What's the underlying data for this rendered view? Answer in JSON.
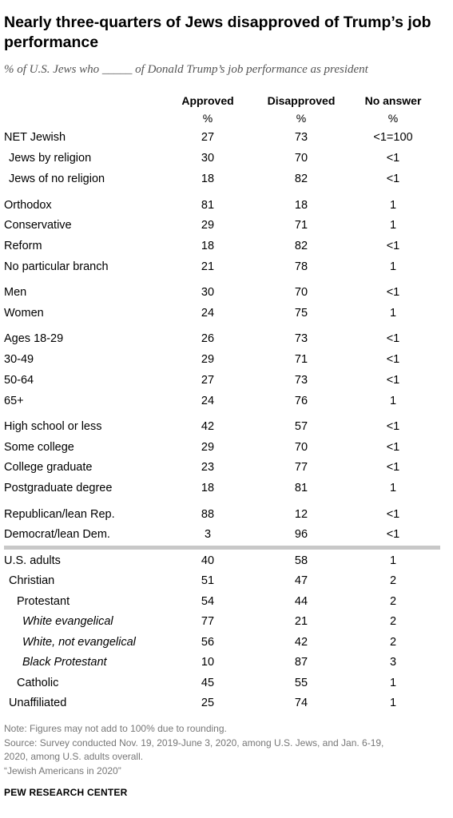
{
  "title": "Nearly three-quarters of Jews disapproved of Trump’s job performance",
  "subtitle": "% of U.S. Jews who _____ of Donald Trump’s job performance as president",
  "chart_data": {
    "type": "table",
    "columns": [
      "Approved",
      "Disapproved",
      "No answer"
    ],
    "units": [
      "%",
      "%",
      "%"
    ],
    "rows": [
      {
        "label": "NET Jewish",
        "values": [
          "27",
          "73",
          "<1=100"
        ]
      },
      {
        "label": "Jews by religion",
        "values": [
          "30",
          "70",
          "<1"
        ]
      },
      {
        "label": "Jews of no religion",
        "values": [
          "18",
          "82",
          "<1"
        ]
      },
      {
        "label": "Orthodox",
        "values": [
          "81",
          "18",
          "1"
        ]
      },
      {
        "label": "Conservative",
        "values": [
          "29",
          "71",
          "1"
        ]
      },
      {
        "label": "Reform",
        "values": [
          "18",
          "82",
          "<1"
        ]
      },
      {
        "label": "No particular branch",
        "values": [
          "21",
          "78",
          "1"
        ]
      },
      {
        "label": "Men",
        "values": [
          "30",
          "70",
          "<1"
        ]
      },
      {
        "label": "Women",
        "values": [
          "24",
          "75",
          "1"
        ]
      },
      {
        "label": "Ages 18-29",
        "values": [
          "26",
          "73",
          "<1"
        ]
      },
      {
        "label": "30-49",
        "values": [
          "29",
          "71",
          "<1"
        ]
      },
      {
        "label": "50-64",
        "values": [
          "27",
          "73",
          "<1"
        ]
      },
      {
        "label": "65+",
        "values": [
          "24",
          "76",
          "1"
        ]
      },
      {
        "label": "High school or less",
        "values": [
          "42",
          "57",
          "<1"
        ]
      },
      {
        "label": "Some college",
        "values": [
          "29",
          "70",
          "<1"
        ]
      },
      {
        "label": "College graduate",
        "values": [
          "23",
          "77",
          "<1"
        ]
      },
      {
        "label": "Postgraduate degree",
        "values": [
          "18",
          "81",
          "1"
        ]
      },
      {
        "label": "Republican/lean Rep.",
        "values": [
          "88",
          "12",
          "<1"
        ]
      },
      {
        "label": "Democrat/lean Dem.",
        "values": [
          "3",
          "96",
          "<1"
        ]
      },
      {
        "label": "U.S. adults",
        "values": [
          "40",
          "58",
          "1"
        ]
      },
      {
        "label": "Christian",
        "values": [
          "51",
          "47",
          "2"
        ]
      },
      {
        "label": "Protestant",
        "values": [
          "54",
          "44",
          "2"
        ]
      },
      {
        "label": "White evangelical",
        "values": [
          "77",
          "21",
          "2"
        ]
      },
      {
        "label": "White, not evangelical",
        "values": [
          "56",
          "42",
          "2"
        ]
      },
      {
        "label": "Black Protestant",
        "values": [
          "10",
          "87",
          "3"
        ]
      },
      {
        "label": "Catholic",
        "values": [
          "45",
          "55",
          "1"
        ]
      },
      {
        "label": "Unaffiliated",
        "values": [
          "25",
          "74",
          "1"
        ]
      }
    ]
  },
  "notes": [
    "Note: Figures may not add to 100% due to rounding.",
    "Source: Survey conducted Nov. 19, 2019-June 3, 2020, among U.S. Jews, and Jan. 6-19,",
    "2020, among U.S. adults overall.",
    "“Jewish Americans in 2020”"
  ],
  "source": "PEW RESEARCH CENTER"
}
